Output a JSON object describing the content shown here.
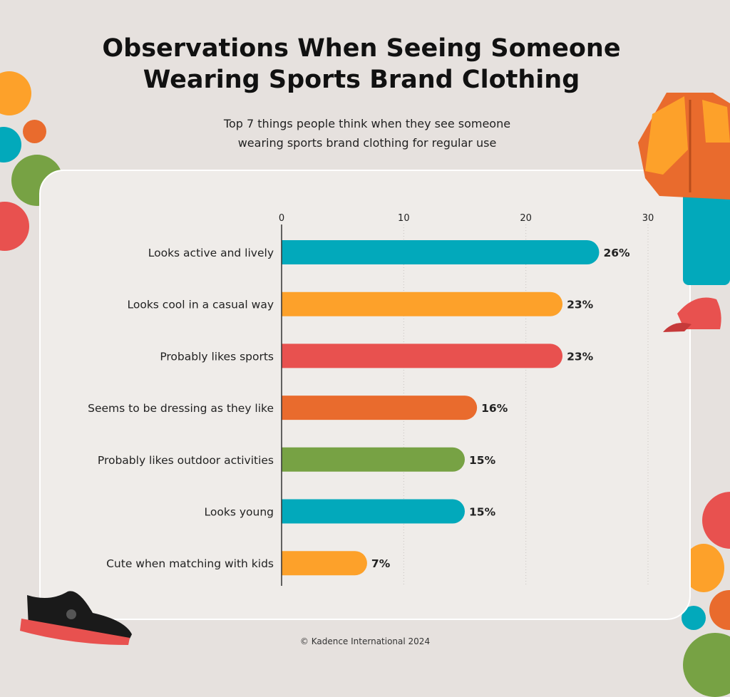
{
  "title_line1": "Observations When Seeing Someone",
  "title_line2": "Wearing Sports Brand Clothing",
  "subtitle_line1": "Top 7 things people think when they see someone",
  "subtitle_line2": "wearing sports brand clothing for regular use",
  "footer": "© Kadence International 2024",
  "colors": {
    "teal": "#02a9bb",
    "yellow": "#fda12a",
    "red": "#e8514f",
    "orange": "#e96b2d",
    "green": "#77a244"
  },
  "chart_data": {
    "type": "bar",
    "orientation": "horizontal",
    "categories": [
      "Looks active and lively",
      "Looks cool in a casual way",
      "Probably likes sports",
      "Seems to be dressing as they like",
      "Probably likes outdoor activities",
      "Looks young",
      "Cute when matching with kids"
    ],
    "values": [
      26,
      23,
      23,
      16,
      15,
      15,
      7
    ],
    "data_labels": [
      "26%",
      "23%",
      "23%",
      "16%",
      "15%",
      "15%",
      "7%"
    ],
    "bar_colors": [
      "#02a9bb",
      "#fda12a",
      "#e8514f",
      "#e96b2d",
      "#77a244",
      "#02a9bb",
      "#fda12a"
    ],
    "xlim": [
      0,
      30
    ],
    "x_ticks": [
      0,
      10,
      20,
      30
    ],
    "axis_position": "top",
    "grid": "vertical dotted",
    "title": "Observations When Seeing Someone Wearing Sports Brand Clothing",
    "xlabel": "",
    "ylabel": ""
  }
}
